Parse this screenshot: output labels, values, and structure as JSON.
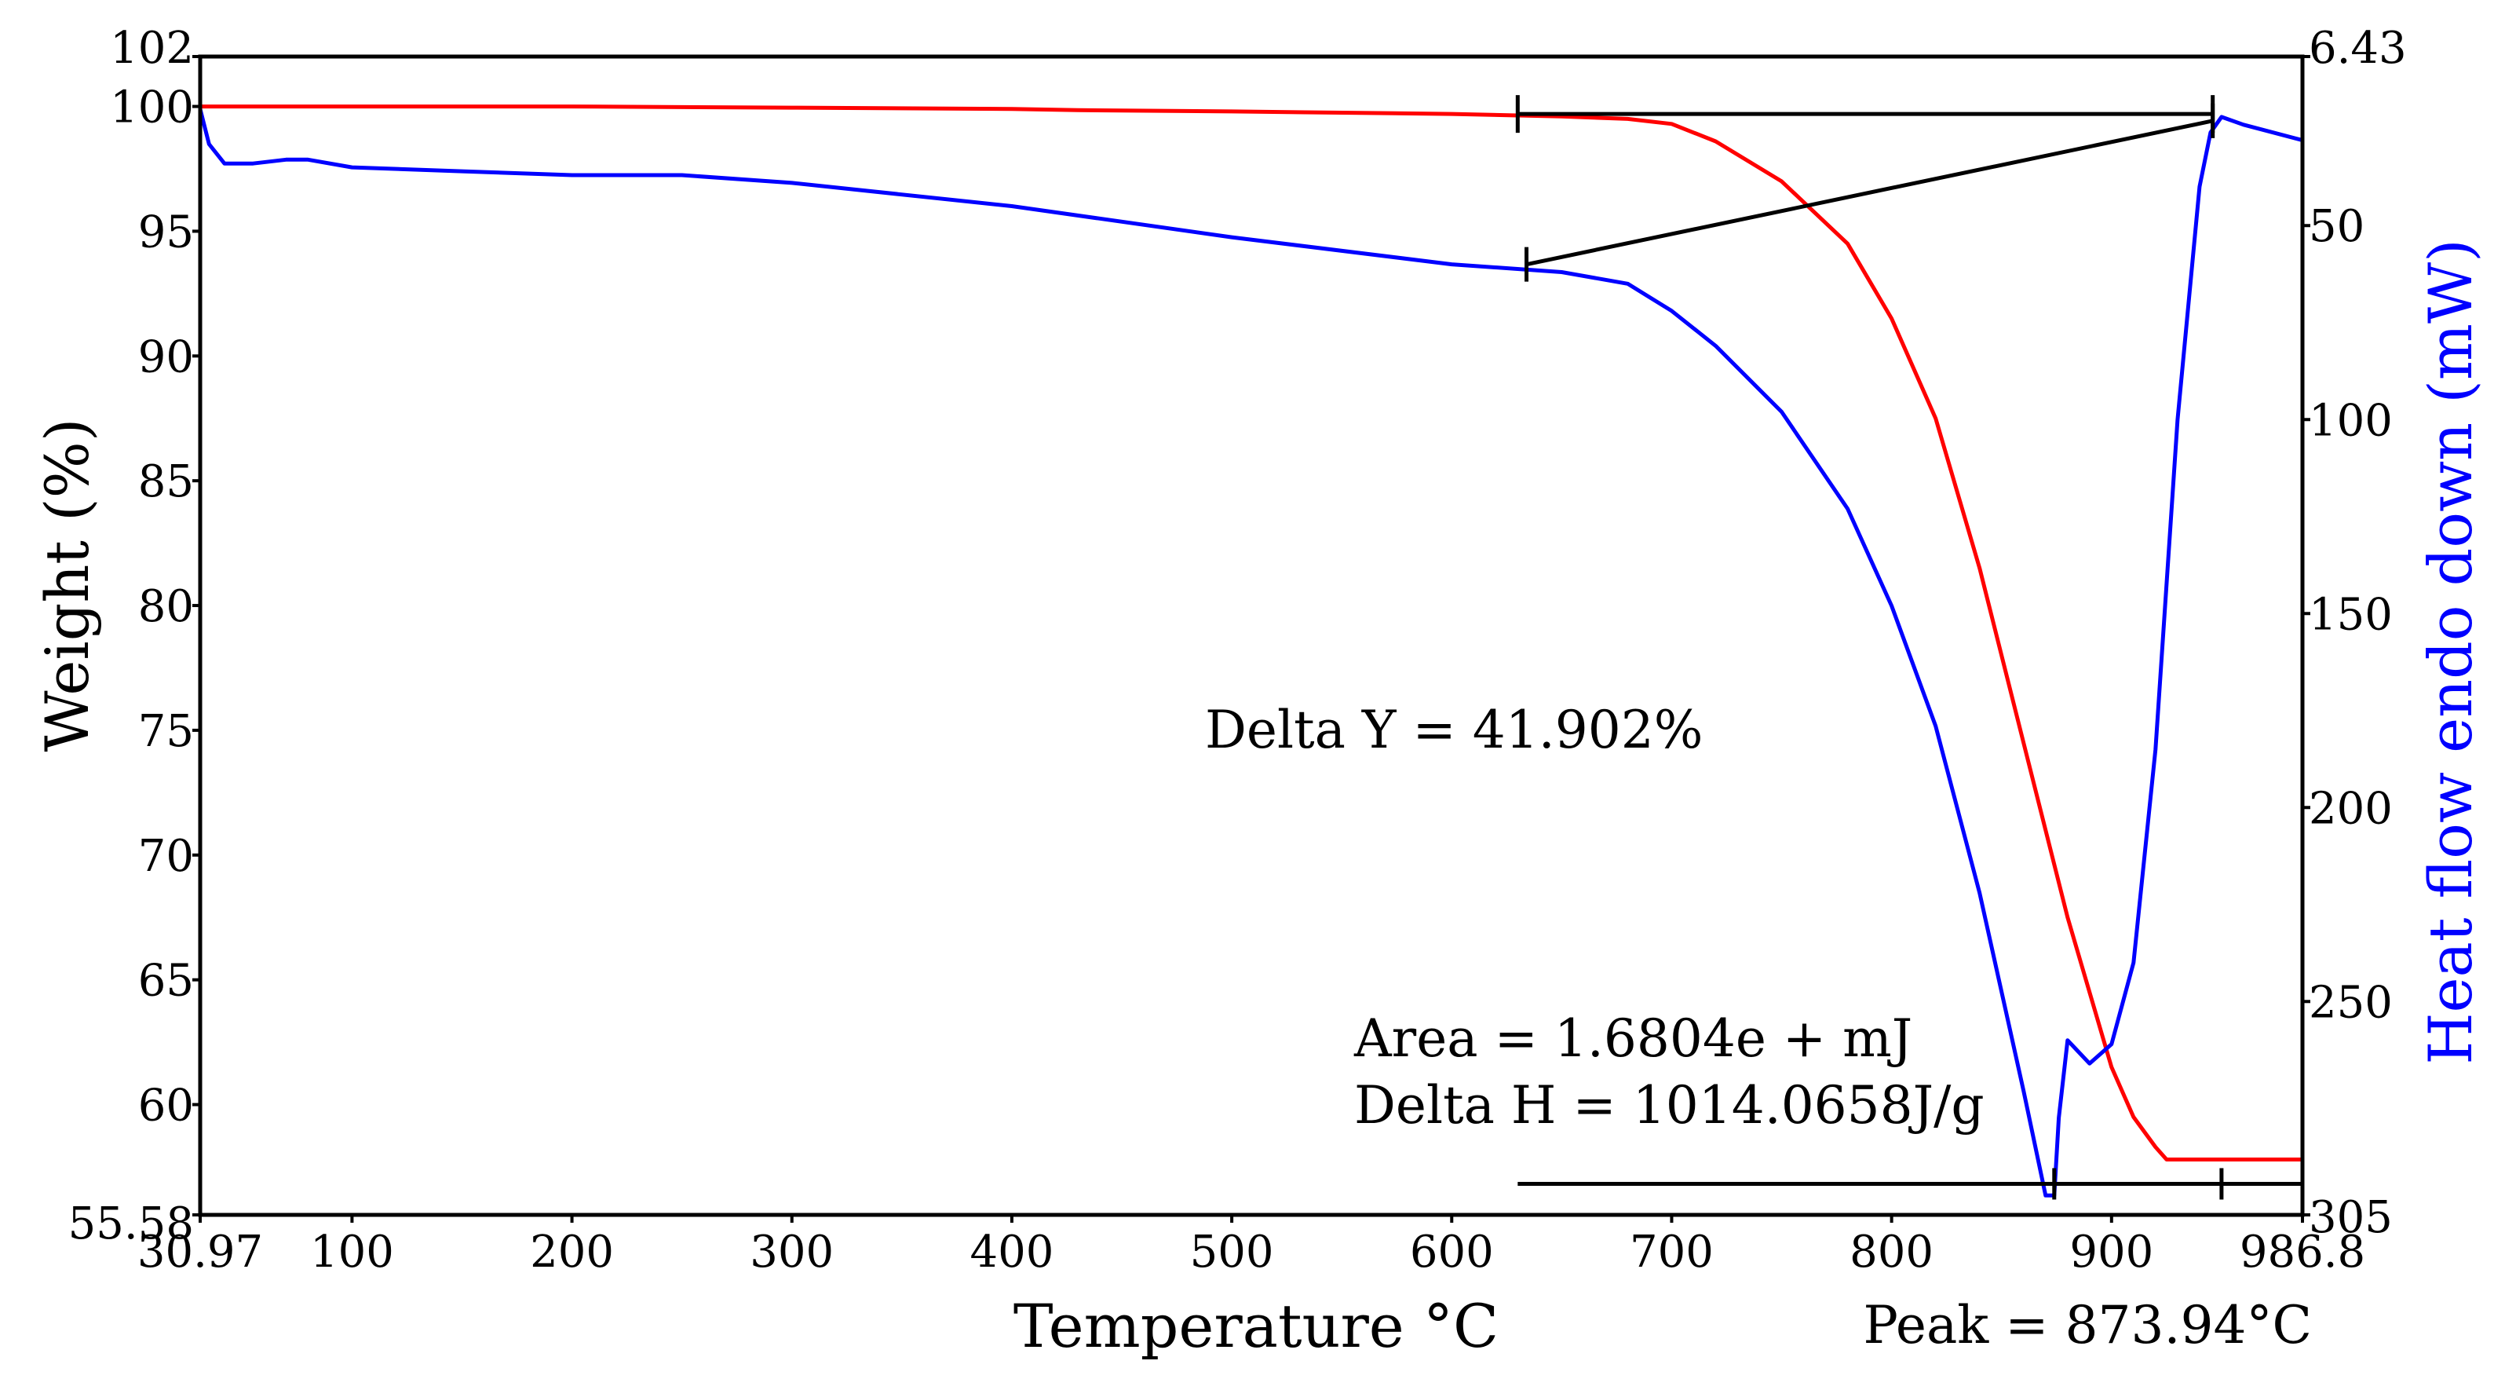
{
  "chart_data": {
    "type": "line",
    "title": "",
    "xlabel": "Temperature °C",
    "ylabel_left": "Weight (%)",
    "ylabel_right": "Heat flow endo down (mW)",
    "xlim": [
      30.97,
      986.8
    ],
    "ylim_left": [
      55.58,
      102
    ],
    "ylim_right": [
      305,
      6.43
    ],
    "x_ticks": [
      {
        "value": 30.97,
        "label": "30.97"
      },
      {
        "value": 100,
        "label": "100"
      },
      {
        "value": 200,
        "label": "200"
      },
      {
        "value": 300,
        "label": "300"
      },
      {
        "value": 400,
        "label": "400"
      },
      {
        "value": 500,
        "label": "500"
      },
      {
        "value": 600,
        "label": "600"
      },
      {
        "value": 700,
        "label": "700"
      },
      {
        "value": 800,
        "label": "800"
      },
      {
        "value": 900,
        "label": "900"
      },
      {
        "value": 986.8,
        "label": "986.8"
      }
    ],
    "y_left_ticks": [
      {
        "value": 102,
        "label": "102"
      },
      {
        "value": 100,
        "label": "100"
      },
      {
        "value": 95,
        "label": "95"
      },
      {
        "value": 90,
        "label": "90"
      },
      {
        "value": 85,
        "label": "85"
      },
      {
        "value": 80,
        "label": "80"
      },
      {
        "value": 75,
        "label": "75"
      },
      {
        "value": 70,
        "label": "70"
      },
      {
        "value": 65,
        "label": "65"
      },
      {
        "value": 60,
        "label": "60"
      },
      {
        "value": 55.58,
        "label": "55.58"
      }
    ],
    "y_right_ticks": [
      {
        "value": 6.43,
        "label": "6.43"
      },
      {
        "value": 50,
        "label": "50"
      },
      {
        "value": 100,
        "label": "100"
      },
      {
        "value": 150,
        "label": "150"
      },
      {
        "value": 200,
        "label": "200"
      },
      {
        "value": 250,
        "label": "250"
      },
      {
        "value": 305,
        "label": "305"
      }
    ],
    "series": [
      {
        "name": "Weight",
        "axis": "left",
        "color": "#ff0000",
        "x": [
          30.97,
          100,
          200,
          300,
          400,
          430,
          500,
          550,
          600,
          650,
          680,
          700,
          720,
          750,
          780,
          800,
          820,
          840,
          860,
          880,
          900,
          910,
          920,
          925,
          940,
          960,
          986.8
        ],
        "y": [
          100.0,
          100.0,
          100.0,
          99.95,
          99.9,
          99.85,
          99.8,
          99.75,
          99.7,
          99.6,
          99.5,
          99.3,
          98.6,
          97.0,
          94.5,
          91.5,
          87.5,
          81.5,
          74.5,
          67.5,
          61.5,
          59.5,
          58.3,
          57.8,
          57.8,
          57.8,
          57.8
        ]
      },
      {
        "name": "Heat flow",
        "axis": "right",
        "color": "#0000ff",
        "x": [
          30.97,
          35,
          42,
          55,
          70,
          80,
          100,
          150,
          200,
          250,
          300,
          400,
          500,
          600,
          650,
          680,
          700,
          720,
          750,
          780,
          800,
          820,
          840,
          860,
          870,
          873.94,
          876,
          880,
          885,
          890,
          900,
          910,
          920,
          930,
          940,
          945,
          950,
          960,
          986.8
        ],
        "y": [
          20,
          29,
          34,
          34,
          33,
          33,
          35,
          36,
          37,
          37,
          39,
          45,
          53,
          60,
          62,
          65,
          72,
          81,
          98,
          123,
          148,
          179,
          222,
          273,
          300,
          300,
          280,
          260,
          263,
          266,
          261,
          240,
          185,
          100,
          40,
          26,
          22,
          24,
          28
        ]
      }
    ],
    "annotations": [
      {
        "name": "delta-y",
        "text": "Delta Y = 41.902%"
      },
      {
        "name": "area",
        "text": "Area = 1.6804e + mJ"
      },
      {
        "name": "delta-h",
        "text": "Delta H = 1014.0658J/g"
      },
      {
        "name": "peak",
        "text": "Peak = 873.94°C"
      }
    ],
    "markers": {
      "weight_step": {
        "x_start": 630,
        "x_end": 946,
        "y_level": 99.7
      },
      "baseline": {
        "x_start": 634,
        "y_start": 60,
        "x_end": 946,
        "y_end": 23
      },
      "area_line": {
        "x_start": 630,
        "x_end": 986.8,
        "y_level": 297,
        "tick_xs": [
          873.94,
          950
        ]
      }
    }
  }
}
